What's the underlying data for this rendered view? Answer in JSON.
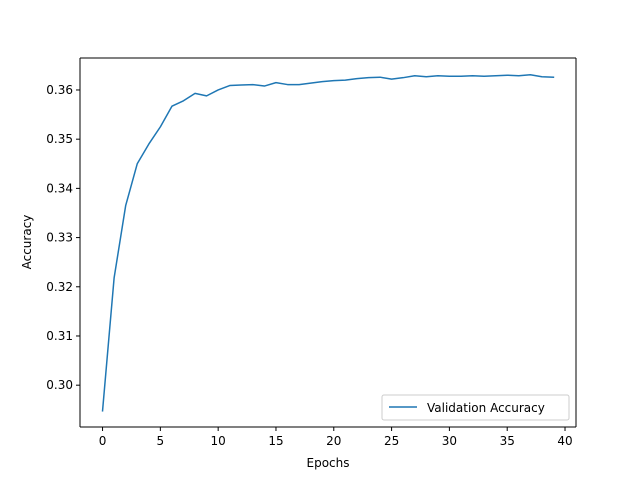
{
  "chart_data": {
    "type": "line",
    "title": "",
    "xlabel": "Epochs",
    "ylabel": "Accuracy",
    "xlim": [
      -1.95,
      40.95
    ],
    "ylim": [
      0.2915,
      0.3665
    ],
    "xticks": [
      0,
      5,
      10,
      15,
      20,
      25,
      30,
      35,
      40
    ],
    "yticks": [
      0.3,
      0.31,
      0.32,
      0.33,
      0.34,
      0.35,
      0.36
    ],
    "grid": false,
    "legend_position": "lower-right",
    "series": [
      {
        "name": "Validation Accuracy",
        "color": "#1f77b4",
        "x": [
          0,
          1,
          2,
          3,
          4,
          5,
          6,
          7,
          8,
          9,
          10,
          11,
          12,
          13,
          14,
          15,
          16,
          17,
          18,
          19,
          20,
          21,
          22,
          23,
          24,
          25,
          26,
          27,
          28,
          29,
          30,
          31,
          32,
          33,
          34,
          35,
          36,
          37,
          38,
          39
        ],
        "y": [
          0.2948,
          0.3218,
          0.3365,
          0.345,
          0.349,
          0.3525,
          0.3567,
          0.3578,
          0.3593,
          0.3588,
          0.36,
          0.3609,
          0.361,
          0.3611,
          0.3608,
          0.3615,
          0.3611,
          0.3611,
          0.3614,
          0.3617,
          0.3619,
          0.362,
          0.3623,
          0.3625,
          0.3626,
          0.3622,
          0.3625,
          0.3629,
          0.3627,
          0.3629,
          0.3628,
          0.3628,
          0.3629,
          0.3628,
          0.3629,
          0.363,
          0.3629,
          0.3631,
          0.3627,
          0.3626
        ]
      }
    ]
  }
}
